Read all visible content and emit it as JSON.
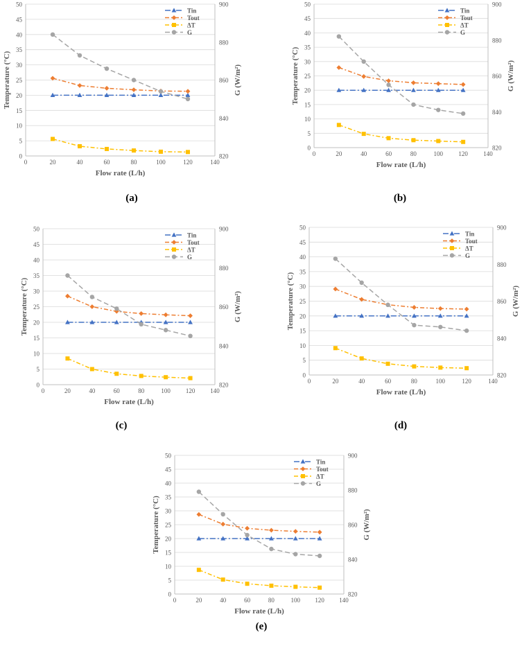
{
  "figure": {
    "series_style": [
      {
        "name": "Tin",
        "color": "#4472c4",
        "marker": "triangle",
        "dash": "8 3 2 3"
      },
      {
        "name": "Tout",
        "color": "#ed7d31",
        "marker": "diamond",
        "dash": "6 3 2 3"
      },
      {
        "name": "ΔT",
        "color": "#ffc000",
        "marker": "square",
        "dash": "6 3 2 3"
      },
      {
        "name": "G",
        "color": "#a5a5a5",
        "marker": "circle",
        "dash": "7 4"
      }
    ],
    "gridline_color": "#d9d9d9"
  },
  "chart_data": [
    {
      "type": "line",
      "panel_label": "(a)",
      "x": [
        20,
        40,
        60,
        80,
        100,
        120
      ],
      "xlabel": "Flow rate (L/h)",
      "ylabel": "Temperature (°C)",
      "y2label": "G (W/m²)",
      "xlim": [
        0,
        140
      ],
      "xticks": [
        0,
        20,
        40,
        60,
        80,
        100,
        120,
        140
      ],
      "ylim": [
        0,
        50
      ],
      "yticks": [
        0,
        5,
        10,
        15,
        20,
        25,
        30,
        35,
        40,
        45,
        50
      ],
      "y2lim": [
        820,
        900
      ],
      "y2ticks": [
        820,
        840,
        860,
        880,
        900
      ],
      "grid": "horizontal",
      "legend": "top-right",
      "series": [
        {
          "name": "Tin",
          "axis": "left",
          "values": [
            20,
            20,
            20,
            20,
            20,
            20
          ]
        },
        {
          "name": "Tout",
          "axis": "left",
          "values": [
            25.6,
            23.2,
            22.3,
            21.8,
            21.4,
            21.3
          ]
        },
        {
          "name": "ΔT",
          "axis": "left",
          "values": [
            5.6,
            3.2,
            2.3,
            1.8,
            1.4,
            1.3
          ]
        },
        {
          "name": "G",
          "axis": "right",
          "values": [
            884,
            873,
            866,
            860,
            854,
            850
          ]
        }
      ]
    },
    {
      "type": "line",
      "panel_label": "(b)",
      "x": [
        20,
        40,
        60,
        80,
        100,
        120
      ],
      "xlabel": "Flow rate (L/h)",
      "ylabel": "Temperature (°C)",
      "y2label": "G (W/m²)",
      "xlim": [
        0,
        140
      ],
      "xticks": [
        0,
        20,
        40,
        60,
        80,
        100,
        120,
        140
      ],
      "ylim": [
        0,
        50
      ],
      "yticks": [
        0,
        5,
        10,
        15,
        20,
        25,
        30,
        35,
        40,
        45,
        50
      ],
      "y2lim": [
        820,
        900
      ],
      "y2ticks": [
        820,
        840,
        860,
        880,
        900
      ],
      "grid": "horizontal",
      "legend": "top-right",
      "series": [
        {
          "name": "Tin",
          "axis": "left",
          "values": [
            20,
            20,
            20,
            20,
            20,
            20
          ]
        },
        {
          "name": "Tout",
          "axis": "left",
          "values": [
            27.9,
            24.8,
            23.3,
            22.6,
            22.3,
            22
          ]
        },
        {
          "name": "ΔT",
          "axis": "left",
          "values": [
            7.9,
            4.8,
            3.3,
            2.6,
            2.3,
            2
          ]
        },
        {
          "name": "G",
          "axis": "right",
          "values": [
            882,
            868,
            855,
            844,
            841,
            839
          ]
        }
      ]
    },
    {
      "type": "line",
      "panel_label": "(c)",
      "x": [
        20,
        40,
        60,
        80,
        100,
        120
      ],
      "xlabel": "Flow rate (L/h)",
      "ylabel": "Temperature (°C)",
      "y2label": "G (W/m²)",
      "xlim": [
        0,
        140
      ],
      "xticks": [
        0,
        20,
        40,
        60,
        80,
        100,
        120,
        140
      ],
      "ylim": [
        0,
        50
      ],
      "yticks": [
        0,
        5,
        10,
        15,
        20,
        25,
        30,
        35,
        40,
        45,
        50
      ],
      "y2lim": [
        820,
        900
      ],
      "y2ticks": [
        820,
        840,
        860,
        880,
        900
      ],
      "grid": "horizontal",
      "legend": "top-right",
      "series": [
        {
          "name": "Tin",
          "axis": "left",
          "values": [
            20,
            20,
            20,
            20,
            20,
            20
          ]
        },
        {
          "name": "Tout",
          "axis": "left",
          "values": [
            28.4,
            25,
            23.5,
            22.8,
            22.4,
            22.1
          ]
        },
        {
          "name": "ΔT",
          "axis": "left",
          "values": [
            8.4,
            5,
            3.5,
            2.8,
            2.4,
            2.1
          ]
        },
        {
          "name": "G",
          "axis": "right",
          "values": [
            876,
            865,
            859,
            851,
            848,
            845
          ]
        }
      ]
    },
    {
      "type": "line",
      "panel_label": "(d)",
      "x": [
        20,
        40,
        60,
        80,
        100,
        120
      ],
      "xlabel": "Flow rate (L/h)",
      "ylabel": "Temperature (°C)",
      "y2label": "G (W/m²)",
      "xlim": [
        0,
        140
      ],
      "xticks": [
        0,
        20,
        40,
        60,
        80,
        100,
        120,
        140
      ],
      "ylim": [
        0,
        50
      ],
      "yticks": [
        0,
        5,
        10,
        15,
        20,
        25,
        30,
        35,
        40,
        45,
        50
      ],
      "y2lim": [
        820,
        900
      ],
      "y2ticks": [
        820,
        840,
        860,
        880,
        900
      ],
      "grid": "horizontal",
      "legend": "top-right",
      "series": [
        {
          "name": "Tin",
          "axis": "left",
          "values": [
            20,
            20,
            20,
            20,
            20,
            20
          ]
        },
        {
          "name": "Tout",
          "axis": "left",
          "values": [
            29.1,
            25.6,
            23.8,
            22.9,
            22.5,
            22.3
          ]
        },
        {
          "name": "ΔT",
          "axis": "left",
          "values": [
            9.1,
            5.6,
            3.8,
            2.9,
            2.5,
            2.3
          ]
        },
        {
          "name": "G",
          "axis": "right",
          "values": [
            883,
            870,
            858,
            847,
            846,
            844
          ]
        }
      ]
    },
    {
      "type": "line",
      "panel_label": "(e)",
      "x": [
        20,
        40,
        60,
        80,
        100,
        120
      ],
      "xlabel": "Flow rate (L/h)",
      "ylabel": "Temperature (°C)",
      "y2label": "G (W/m²)",
      "xlim": [
        0,
        140
      ],
      "xticks": [
        0,
        20,
        40,
        60,
        80,
        100,
        120,
        140
      ],
      "ylim": [
        0,
        50
      ],
      "yticks": [
        0,
        5,
        10,
        15,
        20,
        25,
        30,
        35,
        40,
        45,
        50
      ],
      "y2lim": [
        820,
        900
      ],
      "y2ticks": [
        820,
        840,
        860,
        880,
        900
      ],
      "grid": "horizontal",
      "legend": "top-right",
      "series": [
        {
          "name": "Tin",
          "axis": "left",
          "values": [
            20,
            20,
            20,
            20,
            20,
            20
          ]
        },
        {
          "name": "Tout",
          "axis": "left",
          "values": [
            28.7,
            25.2,
            23.7,
            23,
            22.6,
            22.3
          ]
        },
        {
          "name": "ΔT",
          "axis": "left",
          "values": [
            8.7,
            5.2,
            3.7,
            3,
            2.6,
            2.3
          ]
        },
        {
          "name": "G",
          "axis": "right",
          "values": [
            879,
            866,
            854,
            846,
            843,
            842
          ]
        }
      ]
    }
  ]
}
